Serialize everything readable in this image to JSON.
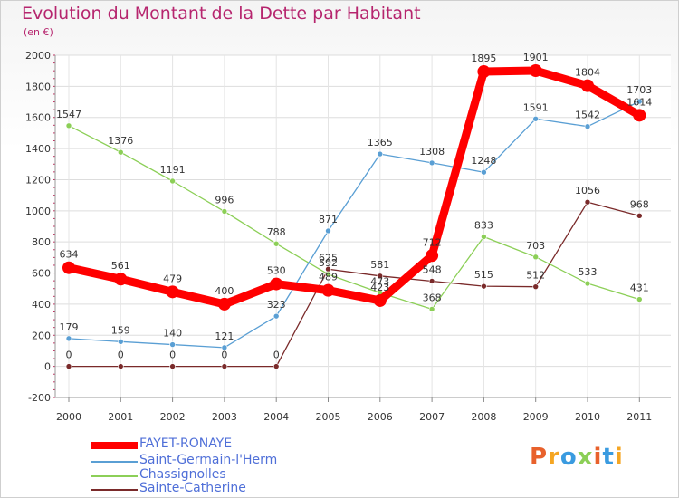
{
  "title": "Evolution du Montant de la Dette par Habitant",
  "unit": "(en €)",
  "brand": "Proxiti",
  "chart_data": {
    "type": "line",
    "x": [
      "2000",
      "2001",
      "2002",
      "2003",
      "2004",
      "2005",
      "2006",
      "2007",
      "2008",
      "2009",
      "2010",
      "2011"
    ],
    "ylim": [
      -200,
      2000
    ],
    "yticks": [
      -200,
      0,
      200,
      400,
      600,
      800,
      1000,
      1200,
      1400,
      1600,
      1800,
      2000
    ],
    "grid": true,
    "legend_position": "bottom-left",
    "series": [
      {
        "name": "FAYET-RONAYE",
        "color": "#ff0000",
        "values": [
          634,
          561,
          479,
          400,
          530,
          489,
          423,
          712,
          1895,
          1901,
          1804,
          1614
        ]
      },
      {
        "name": "Saint-Germain-l'Herm",
        "color": "#5a9fd4",
        "values": [
          179,
          159,
          140,
          121,
          323,
          871,
          1365,
          1308,
          1248,
          1591,
          1542,
          1703
        ]
      },
      {
        "name": "Chassignolles",
        "color": "#8ccf57",
        "values": [
          1547,
          1376,
          1191,
          996,
          788,
          592,
          473,
          368,
          833,
          703,
          533,
          431
        ]
      },
      {
        "name": "Sainte-Catherine",
        "color": "#7a2a2a",
        "values": [
          0,
          0,
          0,
          0,
          0,
          625,
          581,
          548,
          515,
          512,
          1056,
          968
        ]
      }
    ]
  }
}
